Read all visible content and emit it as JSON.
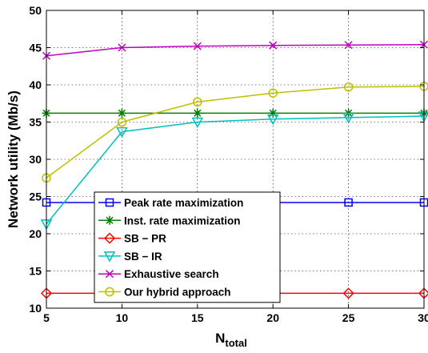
{
  "chart_data": {
    "type": "line",
    "title": "",
    "xlabel": "N",
    "xlabel_sub": "total",
    "ylabel": "Network utility (Mb/s)",
    "x": [
      5,
      10,
      15,
      20,
      25,
      30
    ],
    "xlim": [
      5,
      30
    ],
    "ylim": [
      10,
      50
    ],
    "xticks": [
      5,
      10,
      15,
      20,
      25,
      30
    ],
    "yticks": [
      10,
      15,
      20,
      25,
      30,
      35,
      40,
      45,
      50
    ],
    "grid": true,
    "legend_position": "lower-center",
    "series": [
      {
        "name": "Peak rate maximization",
        "color": "#0000ff",
        "marker": "square",
        "values": [
          24.2,
          24.2,
          24.2,
          24.2,
          24.2,
          24.2
        ],
        "marker_x": [
          5,
          25,
          30
        ]
      },
      {
        "name": "Inst. rate maximization",
        "color": "#007f00",
        "marker": "asterisk",
        "values": [
          36.2,
          36.2,
          36.2,
          36.2,
          36.2,
          36.2
        ],
        "marker_x": [
          5,
          10,
          15,
          20,
          25,
          30
        ]
      },
      {
        "name": "SB − PR",
        "color": "#ff0000",
        "marker": "diamond",
        "values": [
          12.0,
          12.0,
          12.0,
          12.0,
          12.0,
          12.0
        ],
        "marker_x": [
          5,
          25,
          30
        ]
      },
      {
        "name": "SB − IR",
        "color": "#00bfbf",
        "marker": "triangle-down",
        "values": [
          21.3,
          33.7,
          35.0,
          35.4,
          35.6,
          35.8
        ],
        "marker_x": [
          5,
          10,
          15,
          20,
          25,
          30
        ]
      },
      {
        "name": "Exhaustive search",
        "color": "#bf00bf",
        "marker": "x",
        "values": [
          43.9,
          45.0,
          45.2,
          45.3,
          45.35,
          45.4
        ],
        "marker_x": [
          5,
          10,
          15,
          20,
          25,
          30
        ]
      },
      {
        "name": "Our hybrid approach",
        "color": "#bfbf00",
        "marker": "circle",
        "values": [
          27.5,
          35.0,
          37.7,
          38.9,
          39.7,
          39.8
        ],
        "marker_x": [
          5,
          10,
          15,
          20,
          25,
          30
        ]
      }
    ]
  }
}
